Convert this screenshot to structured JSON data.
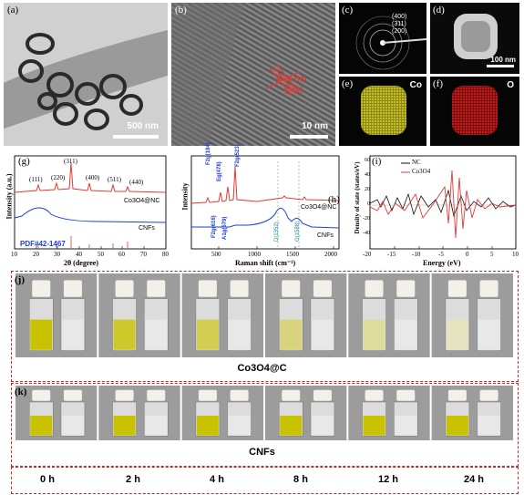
{
  "panels": {
    "a": {
      "label": "(a)",
      "scale": "500 nm"
    },
    "b": {
      "label": "(b)",
      "scale": "10 nm",
      "d_spacing": "0.24 nm",
      "plane": "(311)"
    },
    "c": {
      "label": "(c)",
      "rings": [
        "(400)",
        "(311)",
        "(200)"
      ]
    },
    "d": {
      "label": "(d)",
      "scale": "100 nm"
    },
    "e": {
      "label": "(e)",
      "element": "Co",
      "color": "#d8cf2e"
    },
    "f": {
      "label": "(f)",
      "element": "O",
      "color": "#d61c1c"
    },
    "g": {
      "label": "(g)",
      "xlabel": "2θ (degree)",
      "ylabel": "Intensity (a.u.)",
      "peaks": [
        "(111)",
        "(220)",
        "(311)",
        "(400)",
        "(511)",
        "(440)"
      ],
      "series_labels": [
        "Co3O4@NC",
        "CNFs",
        "PDF#42-1467"
      ],
      "xticks": [
        "10",
        "20",
        "30",
        "40",
        "50",
        "60",
        "70",
        "80"
      ]
    },
    "h": {
      "label": "(h)",
      "xlabel": "Raman shift (cm⁻¹)",
      "ylabel": "Intensity",
      "peak_labels": [
        "F2g(194)",
        "Eg(478)",
        "F2g(523)",
        "F2g(616)",
        "A1g(679)",
        "D(1352)",
        "G(1588)"
      ],
      "series_labels": [
        "Co3O4@NC",
        "CNFs"
      ],
      "xticks": [
        "500",
        "1000",
        "1500",
        "2000"
      ]
    },
    "i": {
      "label": "(i)",
      "xlabel": "Energy (eV)",
      "ylabel": "Density of state (states/eV)",
      "legend": [
        "NC",
        "Co3O4"
      ],
      "xticks": [
        "-20",
        "-15",
        "-10",
        "-5",
        "0",
        "5",
        "10"
      ],
      "yticks": [
        "60",
        "40",
        "20",
        "0",
        "-20",
        "-40"
      ]
    },
    "j": {
      "label": "(j)",
      "caption": "Co3O4@C"
    },
    "k": {
      "label": "(k)",
      "caption": "CNFs"
    }
  },
  "times": [
    "0 h",
    "2 h",
    "4 h",
    "8 h",
    "12 h",
    "24 h"
  ],
  "colors": {
    "red": "#e53935",
    "blue": "#1e3fd6",
    "black": "#111111",
    "dash": "#c62828"
  }
}
